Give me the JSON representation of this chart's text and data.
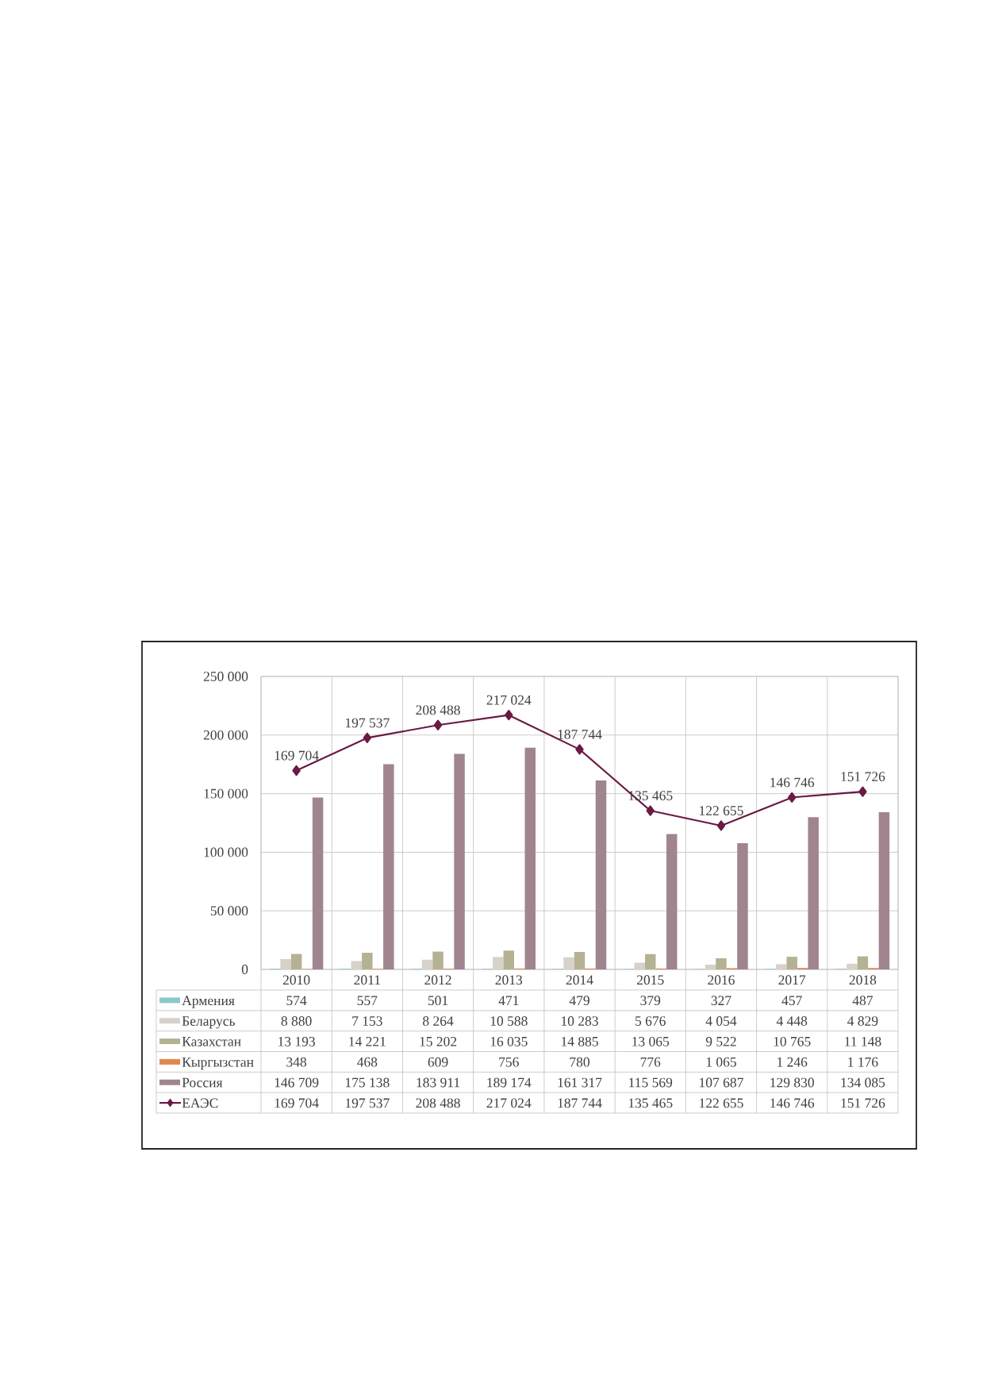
{
  "chart_data": {
    "type": "bar",
    "categories": [
      "2010",
      "2011",
      "2012",
      "2013",
      "2014",
      "2015",
      "2016",
      "2017",
      "2018"
    ],
    "series": [
      {
        "name": "Армения",
        "color": "#8cc8cb",
        "values": [
          574,
          557,
          501,
          471,
          479,
          379,
          327,
          457,
          487
        ]
      },
      {
        "name": "Беларусь",
        "color": "#d6d2ca",
        "values": [
          8880,
          7153,
          8264,
          10588,
          10283,
          5676,
          4054,
          4448,
          4829
        ]
      },
      {
        "name": "Казахстан",
        "color": "#b5b293",
        "values": [
          13193,
          14221,
          15202,
          16035,
          14885,
          13065,
          9522,
          10765,
          11148
        ]
      },
      {
        "name": "Кыргызстан",
        "color": "#e0874f",
        "values": [
          348,
          468,
          609,
          756,
          780,
          776,
          1065,
          1246,
          1176
        ]
      },
      {
        "name": "Россия",
        "color": "#a08590",
        "values": [
          146709,
          175138,
          183911,
          189174,
          161317,
          115569,
          107687,
          129830,
          134085
        ]
      },
      {
        "name": "ЕАЭС",
        "type": "line",
        "color": "#6a1a45",
        "marker": "diamond",
        "values": [
          169704,
          197537,
          208488,
          217024,
          187744,
          135465,
          122655,
          146746,
          151726
        ],
        "value_labels": [
          "169 704",
          "197 537",
          "208 488",
          "217 024",
          "187 744",
          "135 465",
          "122 655",
          "146 746",
          "151 726"
        ]
      }
    ],
    "ylim": [
      0,
      250000
    ],
    "yticks": [
      0,
      {
        "value": 50000,
        "label": "50 000"
      },
      {
        "value": 100000,
        "label": "100 000"
      },
      {
        "value": 150000,
        "label": "150 000"
      },
      {
        "value": 200000,
        "label": "200 000"
      },
      {
        "value": 250000,
        "label": "250 000"
      }
    ],
    "grid": true,
    "legend": "bottom",
    "data_labels": true
  }
}
